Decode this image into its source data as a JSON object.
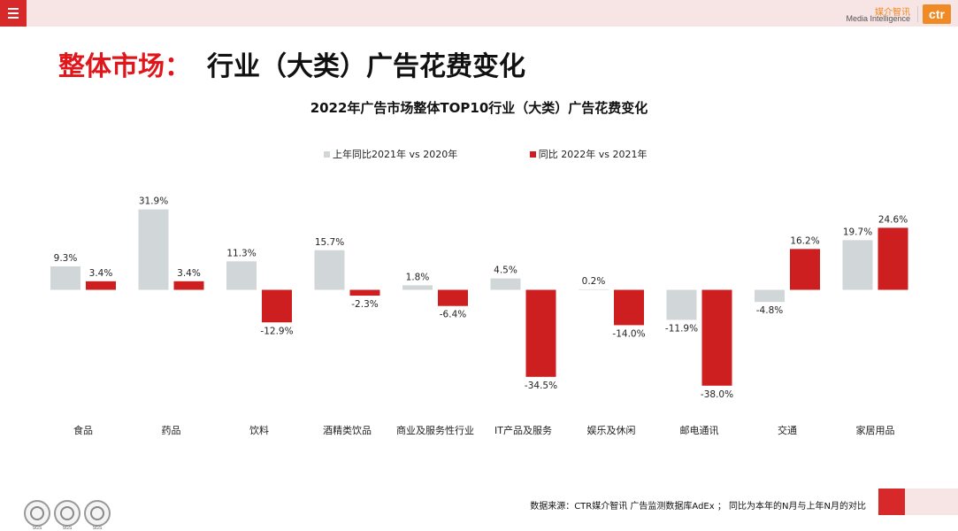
{
  "header": {
    "logo_cn": "媒介智讯",
    "logo_en": "Media Intelligence",
    "logo_mark": "ctr"
  },
  "title": {
    "red": "整体市场：",
    "black": "行业（大类）广告花费变化"
  },
  "footer": {
    "source": "数据来源：CTR媒介智讯 广告监测数据库AdEx ； 同比为本年的N月与上年N月的对比",
    "badge_label": "SGS"
  },
  "colors": {
    "series1": "#d1d6d9",
    "series2": "#cd1f20",
    "accent": "#e0161b"
  },
  "chart_data": {
    "type": "bar",
    "title": "2022年广告市场整体TOP10行业（大类）广告花费变化",
    "xlabel": "",
    "ylabel": "",
    "legend_position": "top",
    "grid": false,
    "unit": "%",
    "categories": [
      "食品",
      "药品",
      "饮料",
      "酒精类饮品",
      "商业及服务性行业",
      "IT产品及服务",
      "娱乐及休闲",
      "邮电通讯",
      "交通",
      "家居用品"
    ],
    "series": [
      {
        "name": "上年同比2021年  vs  2020年",
        "values": [
          9.3,
          31.9,
          11.3,
          15.7,
          1.8,
          4.5,
          0.2,
          -11.9,
          -4.8,
          19.7
        ]
      },
      {
        "name": "同比 2022年  vs  2021年",
        "values": [
          3.4,
          3.4,
          -12.9,
          -2.3,
          -6.4,
          -34.5,
          -14.0,
          -38.0,
          16.2,
          24.6
        ]
      }
    ]
  }
}
